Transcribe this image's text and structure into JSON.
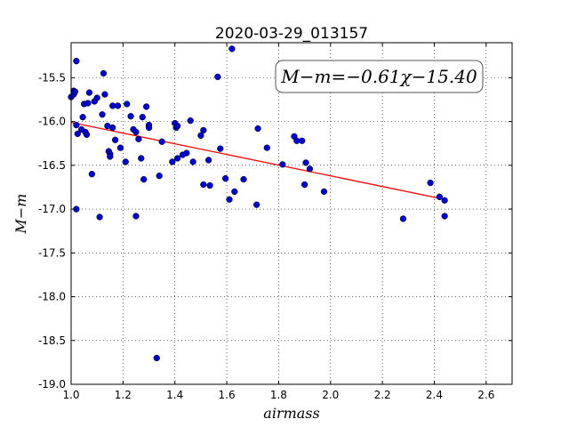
{
  "chart_data": {
    "type": "scatter",
    "title": "2020-03-29_013157",
    "xlabel": "airmass",
    "ylabel": "M−m",
    "xlim": [
      1.0,
      2.7
    ],
    "ylim": [
      -19.0,
      -15.1
    ],
    "xticks": [
      "1.0",
      "1.2",
      "1.4",
      "1.6",
      "1.8",
      "2.0",
      "2.2",
      "2.4",
      "2.6"
    ],
    "yticks": [
      "-15.5",
      "-16.0",
      "-16.5",
      "-17.0",
      "-17.5",
      "-18.0",
      "-18.5",
      "-19.0"
    ],
    "grid": true,
    "annotation": "M−m=−0.61χ−15.40",
    "fit": {
      "slope": -0.61,
      "intercept": -15.4,
      "x_range": [
        1.0,
        2.44
      ],
      "color": "#ff0000"
    },
    "point_color": "#0000cc",
    "points": [
      [
        1.0,
        -15.72
      ],
      [
        1.01,
        -15.69
      ],
      [
        1.01,
        -15.65
      ],
      [
        1.015,
        -15.66
      ],
      [
        1.02,
        -15.31
      ],
      [
        1.02,
        -16.04
      ],
      [
        1.025,
        -16.14
      ],
      [
        1.02,
        -17.0
      ],
      [
        1.04,
        -16.09
      ],
      [
        1.045,
        -15.95
      ],
      [
        1.05,
        -15.8
      ],
      [
        1.055,
        -16.12
      ],
      [
        1.06,
        -16.15
      ],
      [
        1.065,
        -15.79
      ],
      [
        1.07,
        -15.67
      ],
      [
        1.08,
        -16.6
      ],
      [
        1.09,
        -15.77
      ],
      [
        1.1,
        -15.73
      ],
      [
        1.11,
        -17.09
      ],
      [
        1.12,
        -15.92
      ],
      [
        1.125,
        -15.45
      ],
      [
        1.13,
        -15.69
      ],
      [
        1.14,
        -16.05
      ],
      [
        1.145,
        -16.34
      ],
      [
        1.15,
        -16.37
      ],
      [
        1.15,
        -16.4
      ],
      [
        1.16,
        -16.07
      ],
      [
        1.16,
        -15.82
      ],
      [
        1.17,
        -16.21
      ],
      [
        1.18,
        -15.82
      ],
      [
        1.19,
        -16.3
      ],
      [
        1.21,
        -16.46
      ],
      [
        1.215,
        -15.8
      ],
      [
        1.23,
        -15.94
      ],
      [
        1.24,
        -16.09
      ],
      [
        1.25,
        -16.12
      ],
      [
        1.25,
        -17.08
      ],
      [
        1.26,
        -16.2
      ],
      [
        1.27,
        -16.42
      ],
      [
        1.275,
        -15.95
      ],
      [
        1.28,
        -16.66
      ],
      [
        1.29,
        -15.83
      ],
      [
        1.3,
        -16.04
      ],
      [
        1.3,
        -16.07
      ],
      [
        1.33,
        -18.7
      ],
      [
        1.34,
        -16.62
      ],
      [
        1.35,
        -16.23
      ],
      [
        1.39,
        -16.46
      ],
      [
        1.4,
        -16.02
      ],
      [
        1.405,
        -16.07
      ],
      [
        1.41,
        -16.42
      ],
      [
        1.41,
        -16.05
      ],
      [
        1.43,
        -16.38
      ],
      [
        1.445,
        -16.36
      ],
      [
        1.46,
        -15.99
      ],
      [
        1.47,
        -16.46
      ],
      [
        1.5,
        -16.16
      ],
      [
        1.51,
        -16.1
      ],
      [
        1.51,
        -16.72
      ],
      [
        1.53,
        -16.44
      ],
      [
        1.535,
        -16.73
      ],
      [
        1.565,
        -15.49
      ],
      [
        1.575,
        -16.31
      ],
      [
        1.595,
        -16.65
      ],
      [
        1.61,
        -16.89
      ],
      [
        1.62,
        -15.17
      ],
      [
        1.63,
        -16.8
      ],
      [
        1.665,
        -16.66
      ],
      [
        1.715,
        -16.95
      ],
      [
        1.72,
        -16.08
      ],
      [
        1.755,
        -16.3
      ],
      [
        1.815,
        -16.49
      ],
      [
        1.86,
        -16.17
      ],
      [
        1.87,
        -16.22
      ],
      [
        1.89,
        -16.22
      ],
      [
        1.9,
        -16.72
      ],
      [
        1.905,
        -16.47
      ],
      [
        1.92,
        -16.54
      ],
      [
        1.975,
        -16.8
      ],
      [
        2.28,
        -17.11
      ],
      [
        2.385,
        -16.7
      ],
      [
        2.42,
        -16.86
      ],
      [
        2.44,
        -17.08
      ],
      [
        2.44,
        -16.9
      ]
    ]
  }
}
